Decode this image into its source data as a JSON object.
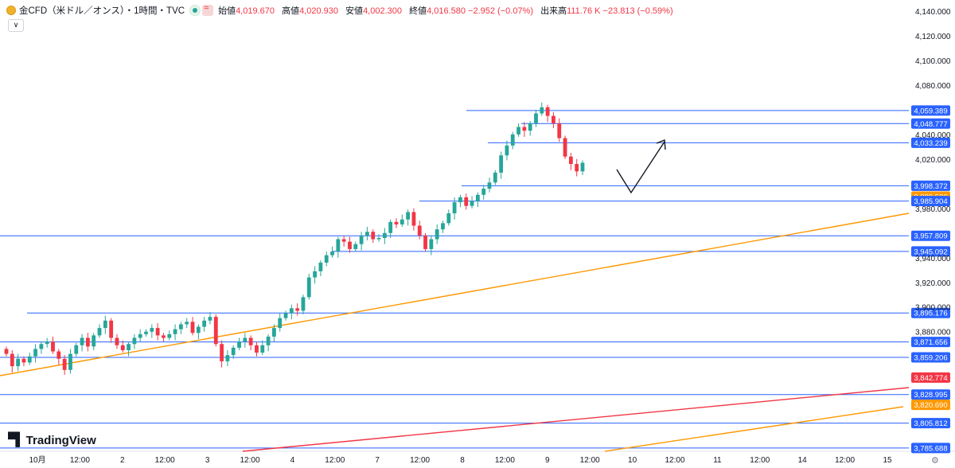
{
  "header": {
    "title": "金CFD（米ドル／オンス）・1時間・TVC",
    "ohlc": [
      {
        "label": "始値",
        "value": "4,019.670"
      },
      {
        "label": "高値",
        "value": "4,020.930"
      },
      {
        "label": "安値",
        "value": "4,002.300"
      },
      {
        "label": "終値",
        "value": "4,016.580 −2.952 (−0.07%)"
      },
      {
        "label": "出来高",
        "value": "111.76 K −23.813 (−0.59%)"
      }
    ],
    "collapse_icon": "chevron-down-icon"
  },
  "logo": {
    "text": "TradingView"
  },
  "colors": {
    "up": "#26a69a",
    "down": "#f23645",
    "hline": "#2962ff",
    "orange": "#ff9800",
    "red": "#f23645"
  },
  "chart_data": {
    "type": "candlestick",
    "y_ticks": [
      "4,140.000",
      "4,120.000",
      "4,100.000",
      "4,080.000",
      "4,040.000",
      "4,020.000",
      "3,980.000",
      "3,940.000",
      "3,920.000",
      "3,900.000",
      "3,880.000"
    ],
    "x_ticks": [
      "10月",
      "12:00",
      "2",
      "12:00",
      "3",
      "12:00",
      "4",
      "12:00",
      "7",
      "12:00",
      "8",
      "12:00",
      "9",
      "12:00",
      "10",
      "12:00",
      "11",
      "12:00",
      "14",
      "12:00",
      "15"
    ],
    "horizontal_levels": [
      {
        "label": "4,059.389",
        "color": "blue"
      },
      {
        "label": "4,048.777",
        "color": "blue"
      },
      {
        "label": "4,033.239",
        "color": "blue"
      },
      {
        "label": "3,998.372",
        "color": "blue"
      },
      {
        "label": "3,989.530",
        "color": "orange"
      },
      {
        "label": "3,985.904",
        "color": "blue"
      },
      {
        "label": "3,957.809",
        "color": "blue"
      },
      {
        "label": "3,945.092",
        "color": "blue"
      },
      {
        "label": "3,895.176",
        "color": "blue"
      },
      {
        "label": "3,871.656",
        "color": "blue"
      },
      {
        "label": "3,859.206",
        "color": "blue"
      },
      {
        "label": "3,842.774",
        "color": "red"
      },
      {
        "label": "3,828.995",
        "color": "blue"
      },
      {
        "label": "3,820.690",
        "color": "orange"
      },
      {
        "label": "3,805.812",
        "color": "blue"
      },
      {
        "label": "3,785.688",
        "color": "blue"
      }
    ],
    "y_range": [
      3783,
      4149
    ],
    "series_close": [
      3862,
      3852,
      3858,
      3855,
      3860,
      3866,
      3870,
      3872,
      3864,
      3858,
      3849,
      3862,
      3869,
      3875,
      3868,
      3877,
      3883,
      3889,
      3875,
      3869,
      3865,
      3870,
      3875,
      3878,
      3880,
      3883,
      3877,
      3875,
      3878,
      3882,
      3886,
      3888,
      3879,
      3884,
      3889,
      3892,
      3870,
      3856,
      3861,
      3867,
      3872,
      3875,
      3869,
      3863,
      3869,
      3876,
      3883,
      3891,
      3895,
      3899,
      3897,
      3908,
      3924,
      3929,
      3936,
      3942,
      3945,
      3955,
      3953,
      3947,
      3951,
      3958,
      3961,
      3955,
      3956,
      3960,
      3969,
      3967,
      3971,
      3977,
      3966,
      3958,
      3947,
      3955,
      3963,
      3968,
      3976,
      3985,
      3989,
      3982,
      3986,
      3991,
      3996,
      4001,
      4009,
      4023,
      4031,
      4040,
      4046,
      4043,
      4049,
      4057,
      4062,
      4055,
      4049,
      4037,
      4022,
      4016,
      4010,
      4017
    ]
  }
}
